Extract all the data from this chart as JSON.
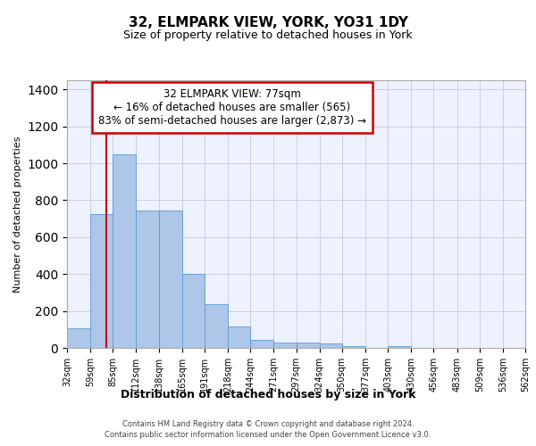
{
  "title": "32, ELMPARK VIEW, YORK, YO31 1DY",
  "subtitle": "Size of property relative to detached houses in York",
  "xlabel": "Distribution of detached houses by size in York",
  "ylabel": "Number of detached properties",
  "footer_line1": "Contains HM Land Registry data © Crown copyright and database right 2024.",
  "footer_line2": "Contains public sector information licensed under the Open Government Licence v3.0.",
  "bar_color": "#aec6e8",
  "bar_edge_color": "#5b9bd5",
  "property_line_color": "#cc0000",
  "annotation_line1": "32 ELMPARK VIEW: 77sqm",
  "annotation_line2": "← 16% of detached houses are smaller (565)",
  "annotation_line3": "83% of semi-detached houses are larger (2,873) →",
  "annotation_box_color": "#cc0000",
  "property_size": 77,
  "bin_edges": [
    32,
    59,
    85,
    112,
    138,
    165,
    191,
    218,
    244,
    271,
    297,
    324,
    350,
    377,
    403,
    430,
    456,
    483,
    509,
    536,
    562
  ],
  "bar_heights": [
    105,
    725,
    1050,
    745,
    745,
    400,
    235,
    115,
    45,
    28,
    28,
    22,
    10,
    0,
    12,
    0,
    0,
    0,
    0,
    0
  ],
  "ylim": [
    0,
    1450
  ],
  "yticks": [
    0,
    200,
    400,
    600,
    800,
    1000,
    1200,
    1400
  ],
  "background_color": "#eef2ff",
  "grid_color": "#c8cfe0",
  "title_fontsize": 11,
  "subtitle_fontsize": 9,
  "ylabel_fontsize": 8,
  "xlabel_fontsize": 9,
  "tick_fontsize": 7,
  "footer_fontsize": 6,
  "annotation_fontsize": 8.5
}
